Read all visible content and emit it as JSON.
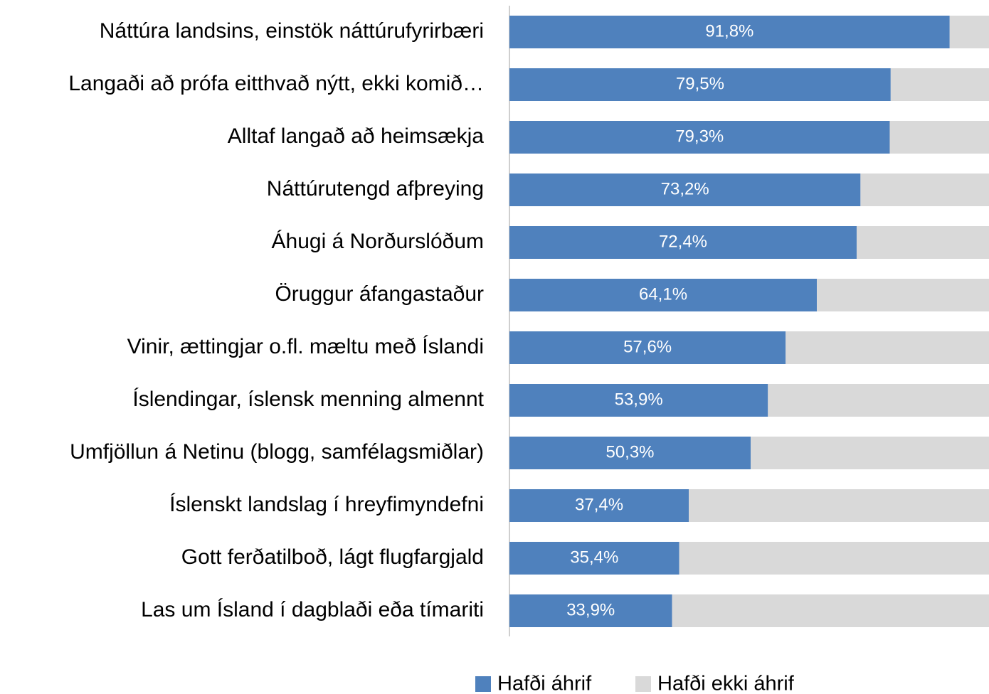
{
  "chart_data": {
    "type": "stacked_barh",
    "categories": [
      "Náttúra landsins, einstök náttúrufyrirbæri",
      "Langaði að prófa eitthvað nýtt, ekki komið…",
      "Alltaf langað að heimsækja",
      "Náttúrutengd afþreying",
      "Áhugi á Norðurslóðum",
      "Öruggur áfangastaður",
      "Vinir, ættingjar o.fl. mæltu með Íslandi",
      "Íslendingar, íslensk menning almennt",
      "Umfjöllun á Netinu (blogg, samfélagsmiðlar)",
      "Íslenskt landslag í hreyfimyndefni",
      "Gott ferðatilboð, lágt flugfargjald",
      "Las um Ísland í dagblaði eða tímariti"
    ],
    "series": [
      {
        "name": "Hafði áhrif",
        "color": "#4f81bd",
        "values": [
          91.8,
          79.5,
          79.3,
          73.2,
          72.4,
          64.1,
          57.6,
          53.9,
          50.3,
          37.4,
          35.4,
          33.9
        ],
        "value_labels": [
          "91,8%",
          "79,5%",
          "79,3%",
          "73,2%",
          "72,4%",
          "64,1%",
          "57,6%",
          "53,9%",
          "50,3%",
          "37,4%",
          "35,4%",
          "33,9%"
        ]
      },
      {
        "name": "Hafði ekki áhrif",
        "color": "#d9d9d9",
        "values": [
          8.2,
          20.5,
          20.7,
          26.8,
          27.6,
          35.9,
          42.4,
          46.1,
          49.7,
          62.6,
          64.6,
          66.1
        ]
      }
    ],
    "xlim": [
      0,
      100
    ]
  }
}
